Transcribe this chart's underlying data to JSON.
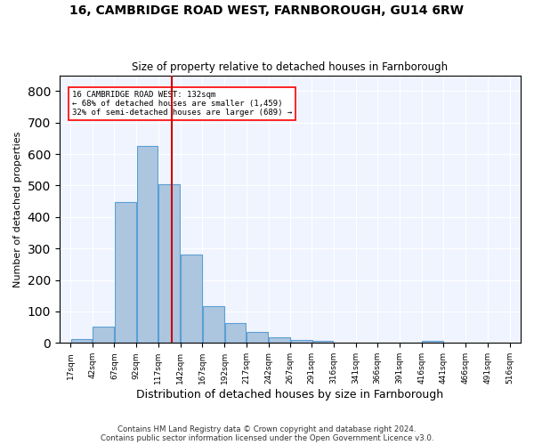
{
  "title": "16, CAMBRIDGE ROAD WEST, FARNBOROUGH, GU14 6RW",
  "subtitle": "Size of property relative to detached houses in Farnborough",
  "xlabel": "Distribution of detached houses by size in Farnborough",
  "ylabel": "Number of detached properties",
  "footnote1": "Contains HM Land Registry data © Crown copyright and database right 2024.",
  "footnote2": "Contains public sector information licensed under the Open Government Licence v3.0.",
  "annotation_line1": "16 CAMBRIDGE ROAD WEST: 132sqm",
  "annotation_line2": "← 68% of detached houses are smaller (1,459)",
  "annotation_line3": "32% of semi-detached houses are larger (689) →",
  "bar_color": "#adc6e0",
  "bar_edge_color": "#5a9fd4",
  "vline_color": "#cc0000",
  "vline_x": 132,
  "background_color": "#f0f4ff",
  "ylim": [
    0,
    850
  ],
  "yticks": [
    0,
    100,
    200,
    300,
    400,
    500,
    600,
    700,
    800
  ],
  "bin_edges": [
    17,
    42,
    67,
    92,
    117,
    142,
    167,
    192,
    217,
    242,
    267,
    291,
    316,
    341,
    366,
    391,
    416,
    441,
    466,
    491,
    516
  ],
  "bin_labels": [
    "17sqm",
    "42sqm",
    "67sqm",
    "92sqm",
    "117sqm",
    "142sqm",
    "167sqm",
    "192sqm",
    "217sqm",
    "242sqm",
    "267sqm",
    "291sqm",
    "316sqm",
    "341sqm",
    "366sqm",
    "391sqm",
    "416sqm",
    "441sqm",
    "466sqm",
    "491sqm",
    "516sqm"
  ],
  "bar_heights": [
    12,
    52,
    448,
    625,
    505,
    280,
    117,
    63,
    35,
    18,
    10,
    8,
    0,
    0,
    0,
    0,
    8,
    0,
    0,
    0
  ]
}
